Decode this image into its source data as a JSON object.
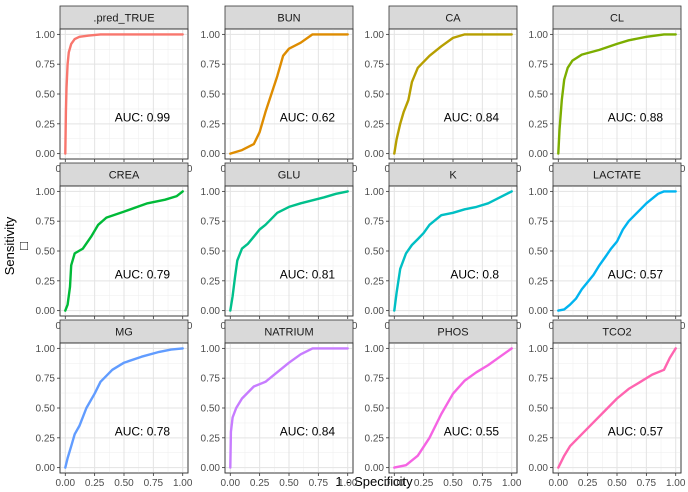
{
  "chart_data": {
    "type": "line",
    "xlabel": "1 - Specificity",
    "ylabel": "Sensitivity",
    "ylabel_glyph": "□",
    "xlim": [
      0,
      1
    ],
    "ylim": [
      0,
      1
    ],
    "ticks": [
      0,
      0.25,
      0.5,
      0.75,
      1
    ],
    "tick_labels": [
      "0.00",
      "0.25",
      "0.50",
      "0.75",
      "1.00"
    ],
    "grid": true,
    "auc_prefix": "AUC: ",
    "panels": [
      {
        "name": ".pred_TRUE",
        "color": "#F8766D",
        "auc": "0.99",
        "points": [
          [
            0,
            0
          ],
          [
            0.005,
            0.35
          ],
          [
            0.01,
            0.55
          ],
          [
            0.02,
            0.75
          ],
          [
            0.03,
            0.85
          ],
          [
            0.05,
            0.92
          ],
          [
            0.08,
            0.96
          ],
          [
            0.12,
            0.98
          ],
          [
            0.2,
            0.99
          ],
          [
            0.3,
            1
          ],
          [
            1,
            1
          ]
        ]
      },
      {
        "name": "BUN",
        "color": "#DE8C00",
        "auc": "0.62",
        "points": [
          [
            0,
            0
          ],
          [
            0.1,
            0.03
          ],
          [
            0.2,
            0.08
          ],
          [
            0.25,
            0.18
          ],
          [
            0.3,
            0.35
          ],
          [
            0.35,
            0.5
          ],
          [
            0.4,
            0.65
          ],
          [
            0.45,
            0.82
          ],
          [
            0.5,
            0.88
          ],
          [
            0.6,
            0.93
          ],
          [
            0.7,
            1
          ],
          [
            1,
            1
          ]
        ]
      },
      {
        "name": "CA",
        "color": "#B79F00",
        "auc": "0.84",
        "points": [
          [
            0,
            0
          ],
          [
            0.02,
            0.12
          ],
          [
            0.05,
            0.25
          ],
          [
            0.08,
            0.35
          ],
          [
            0.12,
            0.45
          ],
          [
            0.15,
            0.6
          ],
          [
            0.2,
            0.72
          ],
          [
            0.3,
            0.82
          ],
          [
            0.4,
            0.9
          ],
          [
            0.5,
            0.97
          ],
          [
            0.6,
            1
          ],
          [
            1,
            1
          ]
        ]
      },
      {
        "name": "CL",
        "color": "#7CAE00",
        "auc": "0.88",
        "points": [
          [
            0,
            0
          ],
          [
            0.01,
            0.2
          ],
          [
            0.03,
            0.45
          ],
          [
            0.05,
            0.62
          ],
          [
            0.08,
            0.72
          ],
          [
            0.12,
            0.78
          ],
          [
            0.2,
            0.83
          ],
          [
            0.35,
            0.87
          ],
          [
            0.5,
            0.92
          ],
          [
            0.6,
            0.95
          ],
          [
            0.75,
            0.98
          ],
          [
            0.9,
            1
          ],
          [
            1,
            1
          ]
        ]
      },
      {
        "name": "CREA",
        "color": "#00BA38",
        "auc": "0.79",
        "points": [
          [
            0,
            0
          ],
          [
            0.02,
            0.05
          ],
          [
            0.04,
            0.2
          ],
          [
            0.05,
            0.38
          ],
          [
            0.08,
            0.48
          ],
          [
            0.15,
            0.52
          ],
          [
            0.22,
            0.62
          ],
          [
            0.28,
            0.72
          ],
          [
            0.35,
            0.78
          ],
          [
            0.5,
            0.83
          ],
          [
            0.7,
            0.9
          ],
          [
            0.85,
            0.93
          ],
          [
            0.95,
            0.96
          ],
          [
            1,
            1
          ]
        ]
      },
      {
        "name": "GLU",
        "color": "#00C08B",
        "auc": "0.81",
        "points": [
          [
            0,
            0
          ],
          [
            0.02,
            0.12
          ],
          [
            0.04,
            0.28
          ],
          [
            0.06,
            0.42
          ],
          [
            0.1,
            0.52
          ],
          [
            0.15,
            0.56
          ],
          [
            0.2,
            0.62
          ],
          [
            0.25,
            0.68
          ],
          [
            0.3,
            0.72
          ],
          [
            0.4,
            0.82
          ],
          [
            0.5,
            0.87
          ],
          [
            0.6,
            0.9
          ],
          [
            0.8,
            0.95
          ],
          [
            0.9,
            0.98
          ],
          [
            1,
            1
          ]
        ]
      },
      {
        "name": "K",
        "color": "#00BFC4",
        "auc": "0.8",
        "points": [
          [
            0,
            0
          ],
          [
            0.02,
            0.15
          ],
          [
            0.05,
            0.35
          ],
          [
            0.1,
            0.48
          ],
          [
            0.15,
            0.55
          ],
          [
            0.2,
            0.6
          ],
          [
            0.25,
            0.65
          ],
          [
            0.3,
            0.72
          ],
          [
            0.4,
            0.8
          ],
          [
            0.5,
            0.82
          ],
          [
            0.6,
            0.85
          ],
          [
            0.7,
            0.87
          ],
          [
            0.8,
            0.9
          ],
          [
            0.9,
            0.95
          ],
          [
            1,
            1
          ]
        ]
      },
      {
        "name": "LACTATE",
        "color": "#00B4F0",
        "auc": "0.57",
        "points": [
          [
            0,
            0
          ],
          [
            0.05,
            0.01
          ],
          [
            0.1,
            0.05
          ],
          [
            0.15,
            0.1
          ],
          [
            0.2,
            0.18
          ],
          [
            0.3,
            0.3
          ],
          [
            0.35,
            0.38
          ],
          [
            0.4,
            0.45
          ],
          [
            0.45,
            0.52
          ],
          [
            0.5,
            0.58
          ],
          [
            0.55,
            0.68
          ],
          [
            0.6,
            0.75
          ],
          [
            0.7,
            0.85
          ],
          [
            0.75,
            0.9
          ],
          [
            0.85,
            0.98
          ],
          [
            0.9,
            1
          ],
          [
            1,
            1
          ]
        ]
      },
      {
        "name": "MG",
        "color": "#619CFF",
        "auc": "0.78",
        "points": [
          [
            0,
            0
          ],
          [
            0.02,
            0.08
          ],
          [
            0.05,
            0.18
          ],
          [
            0.08,
            0.28
          ],
          [
            0.12,
            0.35
          ],
          [
            0.18,
            0.5
          ],
          [
            0.25,
            0.62
          ],
          [
            0.3,
            0.72
          ],
          [
            0.4,
            0.82
          ],
          [
            0.5,
            0.88
          ],
          [
            0.65,
            0.93
          ],
          [
            0.8,
            0.97
          ],
          [
            0.9,
            0.99
          ],
          [
            1,
            1
          ]
        ]
      },
      {
        "name": "NATRIUM",
        "color": "#C77CFF",
        "auc": "0.84",
        "points": [
          [
            0,
            0
          ],
          [
            0.005,
            0.3
          ],
          [
            0.02,
            0.42
          ],
          [
            0.05,
            0.5
          ],
          [
            0.1,
            0.58
          ],
          [
            0.15,
            0.63
          ],
          [
            0.2,
            0.68
          ],
          [
            0.3,
            0.72
          ],
          [
            0.4,
            0.8
          ],
          [
            0.5,
            0.88
          ],
          [
            0.6,
            0.95
          ],
          [
            0.7,
            1
          ],
          [
            1,
            1
          ]
        ]
      },
      {
        "name": "PHOS",
        "color": "#F564E3",
        "auc": "0.55",
        "points": [
          [
            0,
            0
          ],
          [
            0.1,
            0.02
          ],
          [
            0.2,
            0.1
          ],
          [
            0.3,
            0.25
          ],
          [
            0.4,
            0.45
          ],
          [
            0.5,
            0.62
          ],
          [
            0.6,
            0.73
          ],
          [
            0.7,
            0.8
          ],
          [
            0.8,
            0.86
          ],
          [
            0.9,
            0.93
          ],
          [
            1,
            1
          ]
        ]
      },
      {
        "name": "TCO2",
        "color": "#FF64B0",
        "auc": "0.57",
        "points": [
          [
            0,
            0
          ],
          [
            0.05,
            0.1
          ],
          [
            0.1,
            0.18
          ],
          [
            0.2,
            0.28
          ],
          [
            0.3,
            0.38
          ],
          [
            0.4,
            0.48
          ],
          [
            0.5,
            0.58
          ],
          [
            0.6,
            0.66
          ],
          [
            0.7,
            0.72
          ],
          [
            0.8,
            0.78
          ],
          [
            0.9,
            0.82
          ],
          [
            0.95,
            0.92
          ],
          [
            1,
            1
          ]
        ]
      }
    ]
  }
}
